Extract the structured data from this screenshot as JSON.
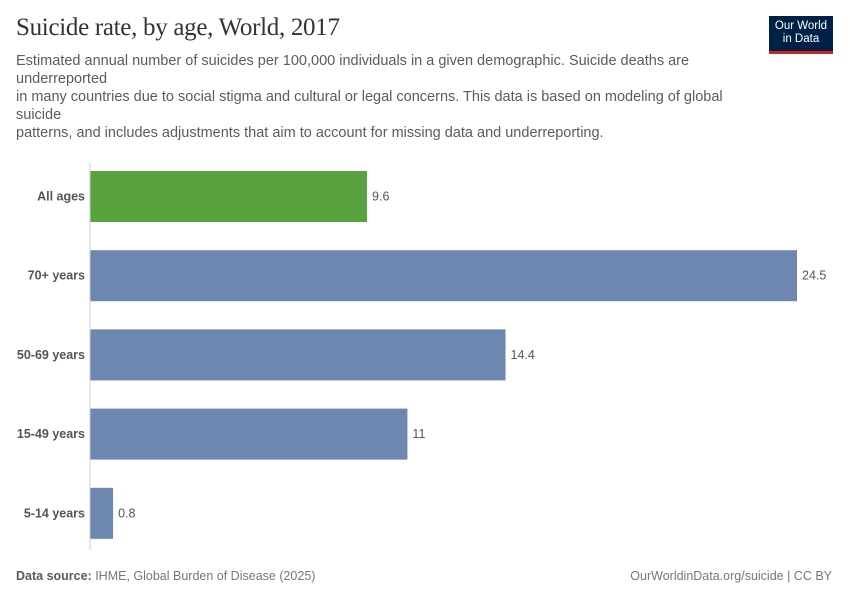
{
  "header": {
    "title": "Suicide rate, by age, World, 2017",
    "subtitle": "Estimated annual number of suicides per 100,000 individuals in a given demographic. Suicide deaths are underreported\nin many countries due to social stigma and cultural or legal concerns. This data is based on modeling of global suicide\npatterns, and includes adjustments that aim to account for missing data and underreporting.",
    "logo_line1": "Our World",
    "logo_line2": "in Data"
  },
  "footer": {
    "source_label": "Data source:",
    "source_text": " IHME, Global Burden of Disease (2025)",
    "right": "OurWorldinData.org/suicide | CC BY"
  },
  "chart_data": {
    "type": "bar",
    "orientation": "horizontal",
    "title": "Suicide rate, by age, World, 2017",
    "categories": [
      "All ages",
      "70+ years",
      "50-69 years",
      "15-49 years",
      "5-14 years"
    ],
    "values": [
      9.6,
      24.5,
      14.4,
      11,
      0.8
    ],
    "value_labels": [
      "9.6",
      "24.5",
      "14.4",
      "11",
      "0.8"
    ],
    "colors": [
      "#58a340",
      "#6d87b0",
      "#6d87b0",
      "#6d87b0",
      "#6d87b0"
    ],
    "xlim": [
      0,
      24.5
    ],
    "grid": false
  }
}
